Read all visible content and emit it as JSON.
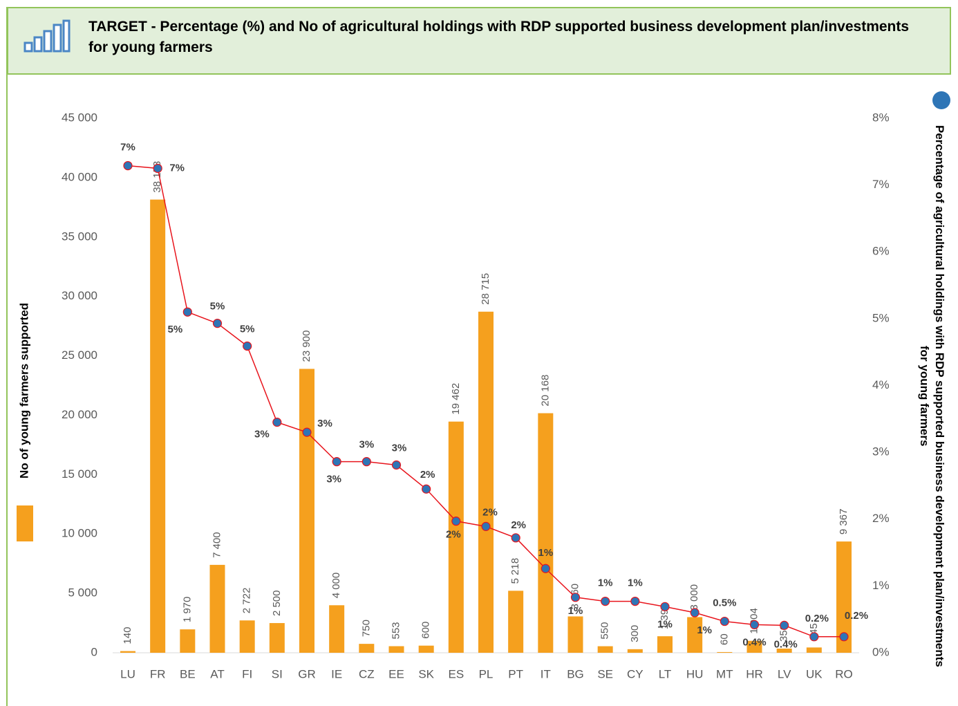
{
  "chart_data": {
    "type": "bar_line",
    "title": "TARGET - Percentage (%) and No of agricultural holdings with RDP supported business development plan/investments for young farmers",
    "y_label": "No of young farmers supported",
    "y2_label": "Percentage of agricultural holdings with RDP supported business development plan/investments for young farmers",
    "categories": [
      "LU",
      "FR",
      "BE",
      "AT",
      "FI",
      "SI",
      "GR",
      "IE",
      "CZ",
      "EE",
      "SK",
      "ES",
      "PL",
      "PT",
      "IT",
      "BG",
      "SE",
      "CY",
      "LT",
      "HU",
      "MT",
      "HR",
      "LV",
      "UK",
      "RO"
    ],
    "series": [
      {
        "type": "bar",
        "color": "#f5a01e",
        "values": [
          140,
          38153,
          1970,
          7400,
          2722,
          2500,
          23900,
          4000,
          750,
          553,
          600,
          19462,
          28715,
          5218,
          20168,
          3060,
          550,
          300,
          1390,
          3000,
          60,
          1004,
          350,
          445,
          9367
        ],
        "value_labels": [
          "140",
          "38 153",
          "1 970",
          "7 400",
          "2 722",
          "2 500",
          "23 900",
          "4 000",
          "750",
          "553",
          "600",
          "19 462",
          "28 715",
          "5 218",
          "20 168",
          "3 060",
          "550",
          "300",
          "1 390",
          "3 000",
          "60",
          "1 004",
          "350",
          "445",
          "9 367"
        ]
      },
      {
        "type": "line",
        "axis": "y2",
        "color": "#e8141c",
        "marker_color": "#2e75b6",
        "values": [
          7.29,
          7.25,
          5.1,
          4.93,
          4.59,
          3.45,
          3.3,
          2.86,
          2.86,
          2.81,
          2.45,
          1.97,
          1.89,
          1.72,
          1.26,
          0.83,
          0.77,
          0.77,
          0.69,
          0.6,
          0.47,
          0.42,
          0.41,
          0.24,
          0.24
        ],
        "value_labels": [
          "7%",
          "7%",
          "5%",
          "5%",
          "5%",
          "3%",
          "3%",
          "3%",
          "3%",
          "3%",
          "2%",
          "2%",
          "2%",
          "2%",
          "1%",
          "1%",
          "1%",
          "1%",
          "1%",
          "1%",
          "0.5%",
          "0.4%",
          "0.4%",
          "0.2%",
          "0.2%"
        ]
      }
    ],
    "ylim": [
      0,
      45000
    ],
    "yticks": [
      0,
      {
        "value": 5000,
        "label": "5 000"
      },
      {
        "value": 10000,
        "label": "10 000"
      },
      {
        "value": 15000,
        "label": "15 000"
      },
      {
        "value": 20000,
        "label": "20 000"
      },
      {
        "value": 25000,
        "label": "25 000"
      },
      {
        "value": 30000,
        "label": "30 000"
      },
      {
        "value": 35000,
        "label": "35 000"
      },
      {
        "value": 40000,
        "label": "40 000"
      },
      {
        "value": 45000,
        "label": "45 000"
      }
    ],
    "y2lim": [
      0,
      8
    ],
    "y2ticks": [
      {
        "value": 0,
        "label": "0%"
      },
      {
        "value": 1,
        "label": "1%"
      },
      {
        "value": 2,
        "label": "2%"
      },
      {
        "value": 3,
        "label": "3%"
      },
      {
        "value": 4,
        "label": "4%"
      },
      {
        "value": 5,
        "label": "5%"
      },
      {
        "value": 6,
        "label": "6%"
      },
      {
        "value": 7,
        "label": "7%"
      },
      {
        "value": 8,
        "label": "8%"
      }
    ]
  }
}
